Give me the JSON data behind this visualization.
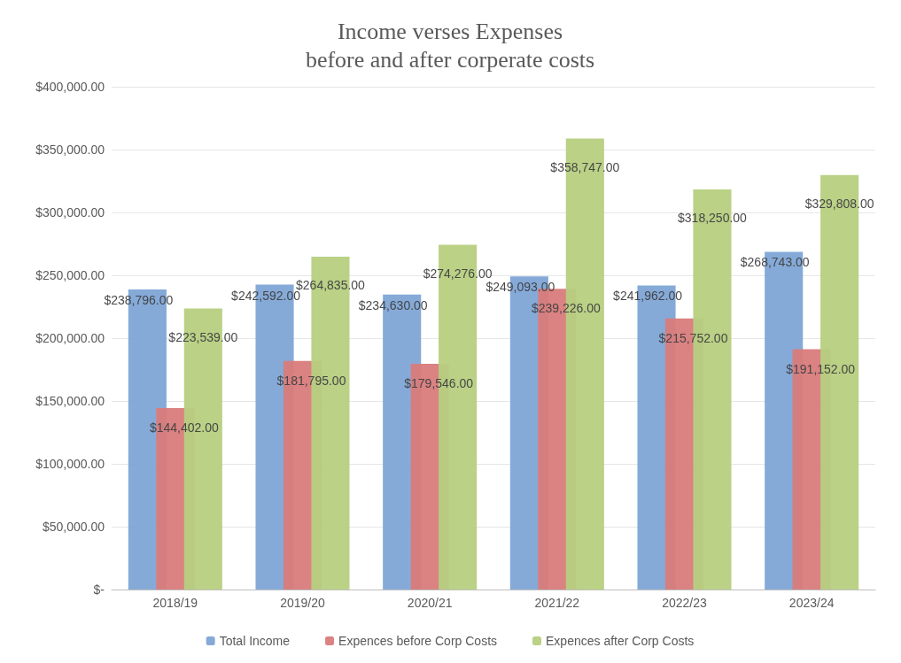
{
  "chart_data": {
    "type": "bar",
    "title": "Income verses Expenses\nbefore and after corperate costs",
    "categories": [
      "2018/19",
      "2019/20",
      "2020/21",
      "2021/22",
      "2022/23",
      "2023/24"
    ],
    "series": [
      {
        "name": "Total Income",
        "color": "#7ea5d6",
        "values": [
          238796,
          242592,
          234630,
          249093,
          241962,
          268743
        ],
        "value_labels": [
          "$238,796.00",
          "$242,592.00",
          "$234,630.00",
          "$249,093.00",
          "$241,962.00",
          "$268,743.00"
        ]
      },
      {
        "name": "Expences before Corp Costs",
        "color": "#d97b7b",
        "values": [
          144402,
          181795,
          179546,
          239226,
          215752,
          191152
        ],
        "value_labels": [
          "$144,402.00",
          "$181,795.00",
          "$179,546.00",
          "$239,226.00",
          "$215,752.00",
          "$191,152.00"
        ]
      },
      {
        "name": "Expences after Corp Costs",
        "color": "#b6cf7f",
        "values": [
          223539,
          264835,
          274276,
          358747,
          318250,
          329808
        ],
        "value_labels": [
          "$223,539.00",
          "$264,835.00",
          "$274,276.00",
          "$358,747.00",
          "$318,250.00",
          "$329,808.00"
        ]
      }
    ],
    "ylim": [
      0,
      400000
    ],
    "yticks": [
      {
        "value": 0,
        "label": "$-"
      },
      {
        "value": 50000,
        "label": "$50,000.00"
      },
      {
        "value": 100000,
        "label": "$100,000.00"
      },
      {
        "value": 150000,
        "label": "$150,000.00"
      },
      {
        "value": 200000,
        "label": "$200,000.00"
      },
      {
        "value": 250000,
        "label": "$250,000.00"
      },
      {
        "value": 300000,
        "label": "$300,000.00"
      },
      {
        "value": 350000,
        "label": "$350,000.00"
      },
      {
        "value": 400000,
        "label": "$400,000.00"
      }
    ],
    "grid": "y",
    "legend": "bottom"
  }
}
